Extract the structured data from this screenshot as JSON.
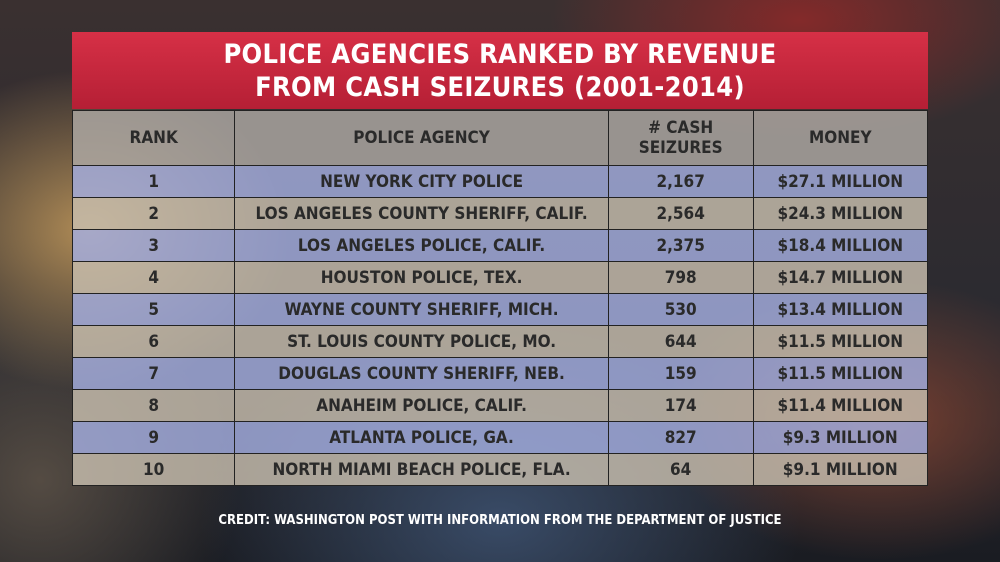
{
  "title_line1": "POLICE AGENCIES RANKED BY REVENUE",
  "title_line2": "FROM CASH SEIZURES (2001-2014)",
  "credit": "CREDIT: WASHINGTON POST WITH INFORMATION FROM THE DEPARTMENT OF JUSTICE",
  "colors": {
    "banner": "#c8283c",
    "row_odd": "#a5afe1",
    "row_even": "#c8beaf"
  },
  "chart_data": {
    "type": "table",
    "title": "POLICE AGENCIES RANKED BY REVENUE FROM CASH SEIZURES (2001-2014)",
    "columns": [
      "RANK",
      "POLICE AGENCY",
      "# CASH SEIZURES",
      "MONEY"
    ],
    "rows": [
      [
        "1",
        "NEW YORK CITY POLICE",
        "2,167",
        "$27.1 MILLION"
      ],
      [
        "2",
        "LOS ANGELES COUNTY SHERIFF, CALIF.",
        "2,564",
        "$24.3 MILLION"
      ],
      [
        "3",
        "LOS ANGELES POLICE, CALIF.",
        "2,375",
        "$18.4 MILLION"
      ],
      [
        "4",
        "HOUSTON POLICE, TEX.",
        "798",
        "$14.7 MILLION"
      ],
      [
        "5",
        "WAYNE COUNTY SHERIFF, MICH.",
        "530",
        "$13.4 MILLION"
      ],
      [
        "6",
        "ST. LOUIS COUNTY POLICE, MO.",
        "644",
        "$11.5 MILLION"
      ],
      [
        "7",
        "DOUGLAS COUNTY SHERIFF, NEB.",
        "159",
        "$11.5 MILLION"
      ],
      [
        "8",
        "ANAHEIM POLICE, CALIF.",
        "174",
        "$11.4 MILLION"
      ],
      [
        "9",
        "ATLANTA POLICE, GA.",
        "827",
        "$9.3 MILLION"
      ],
      [
        "10",
        "NORTH MIAMI BEACH POLICE, FLA.",
        "64",
        "$9.1 MILLION"
      ]
    ]
  }
}
